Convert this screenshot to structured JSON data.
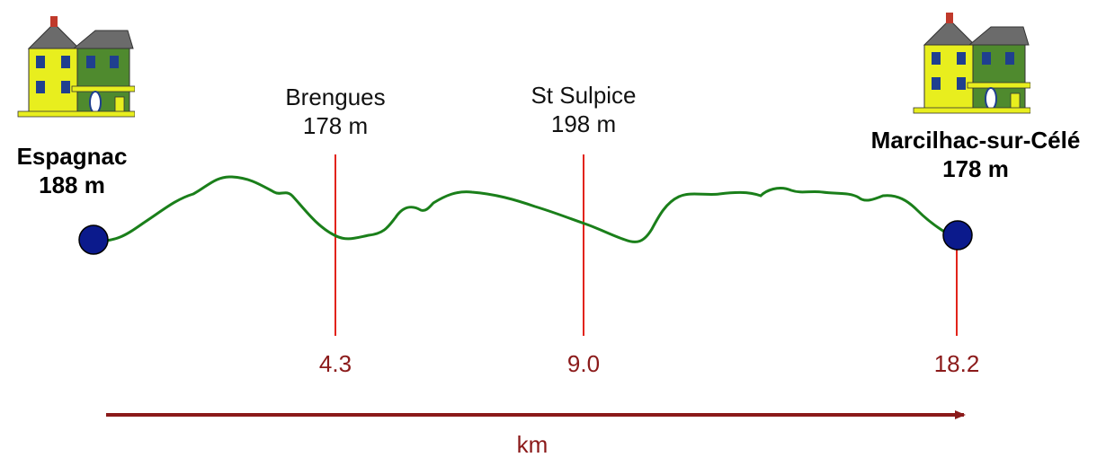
{
  "start": {
    "name": "Espagnac",
    "altitude": "188 m"
  },
  "end": {
    "name": "Marcilhac-sur-Célé",
    "altitude": "178 m"
  },
  "waypoints": [
    {
      "name": "Brengues",
      "altitude": "178 m",
      "distance_label": "4.3"
    },
    {
      "name": "St Sulpice",
      "altitude": "198 m",
      "distance_label": "9.0"
    }
  ],
  "end_distance_label": "18.2",
  "axis_unit": "km",
  "colors": {
    "profile": "#1a7f1a",
    "markers": "#e2231a",
    "axis": "#8b1a1a",
    "endpoint": "#0b1a8c",
    "house_body": "#e8ee1e",
    "house_roof": "#6b6b6b",
    "house_trim": "#3a7a2a"
  },
  "icons": [
    "house-icon",
    "house-icon"
  ]
}
